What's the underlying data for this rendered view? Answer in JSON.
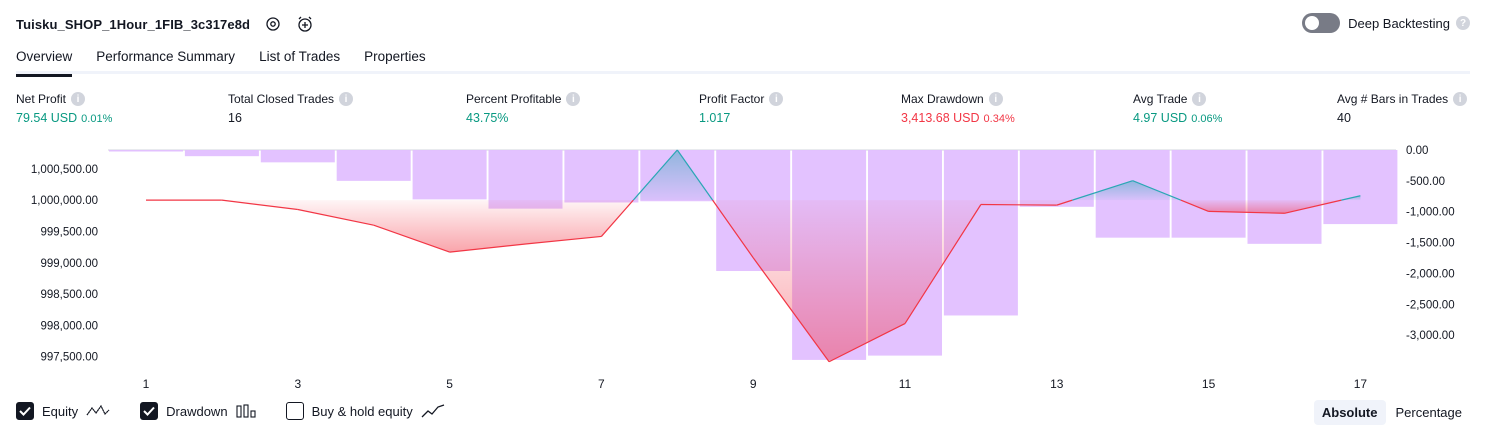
{
  "header": {
    "strategy_name": "Tuisku_SHOP_1Hour_1FIB_3c317e8d"
  },
  "deep_backtesting": {
    "label": "Deep Backtesting",
    "enabled": false
  },
  "tabs": [
    {
      "label": "Overview",
      "active": true
    },
    {
      "label": "Performance Summary",
      "active": false
    },
    {
      "label": "List of Trades",
      "active": false
    },
    {
      "label": "Properties",
      "active": false
    }
  ],
  "metrics": [
    {
      "label": "Net Profit",
      "value": "79.54 USD",
      "pct": "0.01%",
      "color": "green"
    },
    {
      "label": "Total Closed Trades",
      "value": "16",
      "pct": "",
      "color": "dark"
    },
    {
      "label": "Percent Profitable",
      "value": "43.75%",
      "pct": "",
      "color": "green"
    },
    {
      "label": "Profit Factor",
      "value": "1.017",
      "pct": "",
      "color": "green"
    },
    {
      "label": "Max Drawdown",
      "value": "3,413.68 USD",
      "pct": "0.34%",
      "color": "red"
    },
    {
      "label": "Avg Trade",
      "value": "4.97 USD",
      "pct": "0.06%",
      "color": "green"
    },
    {
      "label": "Avg # Bars in Trades",
      "value": "40",
      "pct": "",
      "color": "dark"
    }
  ],
  "colors": {
    "positive": "#089981",
    "negative": "#f23645",
    "equity_line": "#f23645",
    "equity_up_line": "#2aa7b5",
    "drawdown_bar": "#e1bfff",
    "text": "#131722"
  },
  "chart_data": {
    "type": "line",
    "x_ticks": [
      "1",
      "3",
      "5",
      "7",
      "9",
      "11",
      "13",
      "15",
      "17"
    ],
    "left_axis": {
      "ticks": [
        "1,000,500.00",
        "1,000,000.00",
        "999,500.00",
        "999,000.00",
        "998,500.00",
        "998,000.00",
        "997,500.00"
      ],
      "range": [
        997400,
        1000800
      ]
    },
    "right_axis": {
      "ticks": [
        "0.00",
        "-500.00",
        "-1,000.00",
        "-1,500.00",
        "-2,000.00",
        "-2,500.00",
        "-3,000.00"
      ],
      "range": [
        -3450,
        0
      ]
    },
    "baseline": 1000000,
    "series": [
      {
        "name": "Equity",
        "x": [
          1,
          2,
          3,
          4,
          5,
          6,
          7,
          8,
          9,
          10,
          11,
          12,
          13,
          14,
          15,
          16,
          17
        ],
        "values": [
          1000000,
          1000000,
          999850,
          999600,
          999170,
          999300,
          999420,
          1000800,
          999080,
          997420,
          998030,
          999930,
          999920,
          1000310,
          999820,
          999790,
          1000070
        ]
      },
      {
        "name": "Drawdown",
        "x": [
          1,
          2,
          3,
          4,
          5,
          6,
          7,
          8,
          9,
          10,
          11,
          12,
          13,
          14,
          15,
          16,
          17
        ],
        "values": [
          0,
          -100,
          -200,
          -500,
          -800,
          -950,
          -850,
          -830,
          -1960,
          -3400,
          -3330,
          -2680,
          -920,
          -1420,
          -1420,
          -1520,
          -1200
        ]
      }
    ]
  },
  "legend": [
    {
      "label": "Equity",
      "checked": true,
      "icon": "equity-line-icon"
    },
    {
      "label": "Drawdown",
      "checked": true,
      "icon": "drawdown-bars-icon"
    },
    {
      "label": "Buy & hold equity",
      "checked": false,
      "icon": "buy-hold-line-icon"
    }
  ],
  "modes": [
    {
      "label": "Absolute",
      "active": true
    },
    {
      "label": "Percentage",
      "active": false
    }
  ]
}
